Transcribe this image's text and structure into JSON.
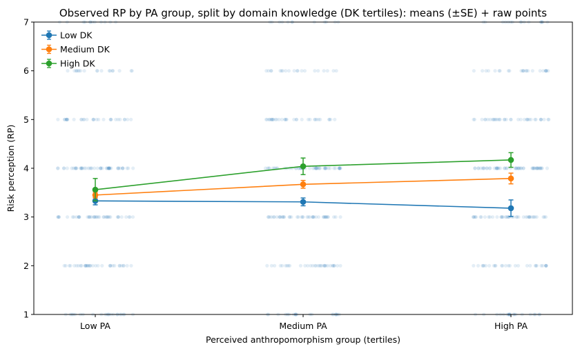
{
  "chart_data": {
    "type": "line",
    "title": "Observed RP by PA group, split by domain knowledge (DK tertiles): means (±SE) + raw points",
    "xlabel": "Perceived anthropomorphism group (tertiles)",
    "ylabel": "Risk perception (RP)",
    "categories": [
      "Low PA",
      "Medium PA",
      "High PA"
    ],
    "ylim": [
      1,
      7
    ],
    "yticks": [
      1,
      2,
      3,
      4,
      5,
      6,
      7
    ],
    "legend_position": "top-left",
    "grid": false,
    "raw_points_color": "#1f77b4",
    "raw_points": [
      {
        "category": "Low PA",
        "y": 1,
        "count": 22
      },
      {
        "category": "Low PA",
        "y": 2,
        "count": 34
      },
      {
        "category": "Low PA",
        "y": 3,
        "count": 40
      },
      {
        "category": "Low PA",
        "y": 4,
        "count": 48
      },
      {
        "category": "Low PA",
        "y": 5,
        "count": 30
      },
      {
        "category": "Low PA",
        "y": 6,
        "count": 18
      },
      {
        "category": "Low PA",
        "y": 7,
        "count": 12
      },
      {
        "category": "Medium PA",
        "y": 1,
        "count": 20
      },
      {
        "category": "Medium PA",
        "y": 2,
        "count": 32
      },
      {
        "category": "Medium PA",
        "y": 3,
        "count": 42
      },
      {
        "category": "Medium PA",
        "y": 4,
        "count": 50
      },
      {
        "category": "Medium PA",
        "y": 5,
        "count": 32
      },
      {
        "category": "Medium PA",
        "y": 6,
        "count": 20
      },
      {
        "category": "Medium PA",
        "y": 7,
        "count": 12
      },
      {
        "category": "High PA",
        "y": 1,
        "count": 20
      },
      {
        "category": "High PA",
        "y": 2,
        "count": 28
      },
      {
        "category": "High PA",
        "y": 3,
        "count": 40
      },
      {
        "category": "High PA",
        "y": 4,
        "count": 52
      },
      {
        "category": "High PA",
        "y": 5,
        "count": 36
      },
      {
        "category": "High PA",
        "y": 6,
        "count": 24
      },
      {
        "category": "High PA",
        "y": 7,
        "count": 16
      }
    ],
    "series": [
      {
        "name": "Low DK",
        "color": "#1f77b4",
        "values": [
          3.33,
          3.31,
          3.18
        ],
        "se": [
          0.08,
          0.08,
          0.17
        ]
      },
      {
        "name": "Medium DK",
        "color": "#ff7f0e",
        "values": [
          3.45,
          3.67,
          3.79
        ],
        "se": [
          0.06,
          0.08,
          0.11
        ]
      },
      {
        "name": "High DK",
        "color": "#2ca02c",
        "values": [
          3.56,
          4.04,
          4.17
        ],
        "se": [
          0.23,
          0.17,
          0.15
        ]
      }
    ]
  }
}
